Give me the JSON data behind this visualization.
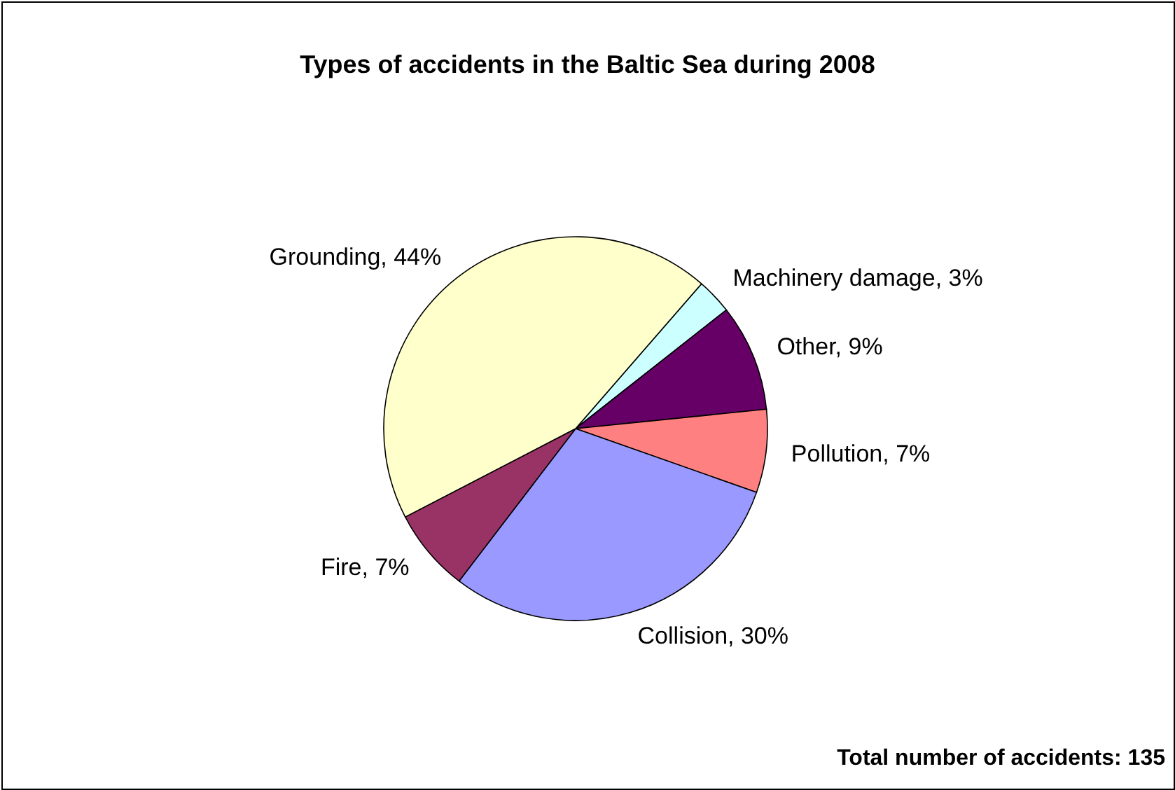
{
  "chart_data": {
    "type": "pie",
    "title": "Types of accidents in the Baltic Sea during 2008",
    "categories": [
      "Machinery damage",
      "Other",
      "Pollution",
      "Collision",
      "Fire",
      "Grounding"
    ],
    "values": [
      3,
      9,
      7,
      30,
      7,
      44
    ],
    "value_labels": [
      "3%",
      "9%",
      "7%",
      "30%",
      "7%",
      "44%"
    ],
    "colors": [
      "#ccffff",
      "#660066",
      "#ff8080",
      "#9999ff",
      "#993366",
      "#ffffcc"
    ],
    "annotations": [
      "Total number of accidents: 135"
    ]
  }
}
